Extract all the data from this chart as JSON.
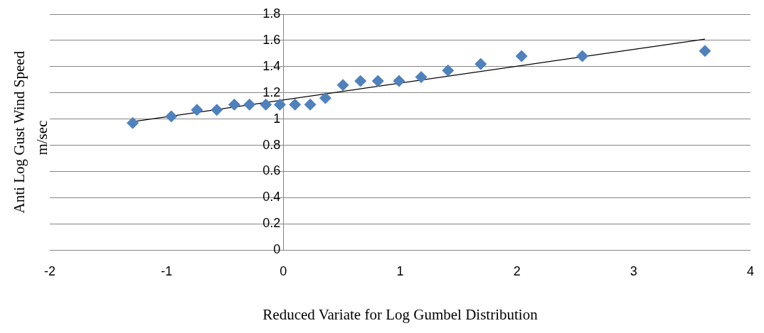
{
  "chart_data": {
    "type": "scatter",
    "xlabel": "Reduced Variate for Log Gumbel Distribution",
    "ylabel": "Anti Log Gust Wind Speed m/sec",
    "xlim": [
      -2,
      4
    ],
    "xticks": [
      -2,
      -1,
      0,
      1,
      2,
      3,
      4
    ],
    "ylim": [
      0,
      1.8
    ],
    "yticks": [
      0,
      0.2,
      0.4,
      0.6,
      0.8,
      1,
      1.2,
      1.4,
      1.6,
      1.8
    ],
    "grid": "y",
    "legend": false,
    "series": [
      {
        "type": "scatter",
        "color": "#4f81bd",
        "marker": "diamond",
        "x": [
          -1.29,
          -0.96,
          -0.74,
          -0.57,
          -0.42,
          -0.29,
          -0.15,
          -0.03,
          0.1,
          0.23,
          0.36,
          0.51,
          0.66,
          0.81,
          0.99,
          1.18,
          1.41,
          1.69,
          2.04,
          2.56,
          3.61
        ],
        "values": [
          0.97,
          1.02,
          1.07,
          1.07,
          1.11,
          1.11,
          1.11,
          1.11,
          1.11,
          1.11,
          1.16,
          1.26,
          1.29,
          1.29,
          1.29,
          1.32,
          1.37,
          1.42,
          1.48,
          1.48,
          1.52
        ]
      },
      {
        "type": "line",
        "color": "#000000",
        "marker": "none",
        "line_style": "solid",
        "x": [
          -1.29,
          3.61
        ],
        "values": [
          0.98,
          1.61
        ]
      }
    ]
  }
}
